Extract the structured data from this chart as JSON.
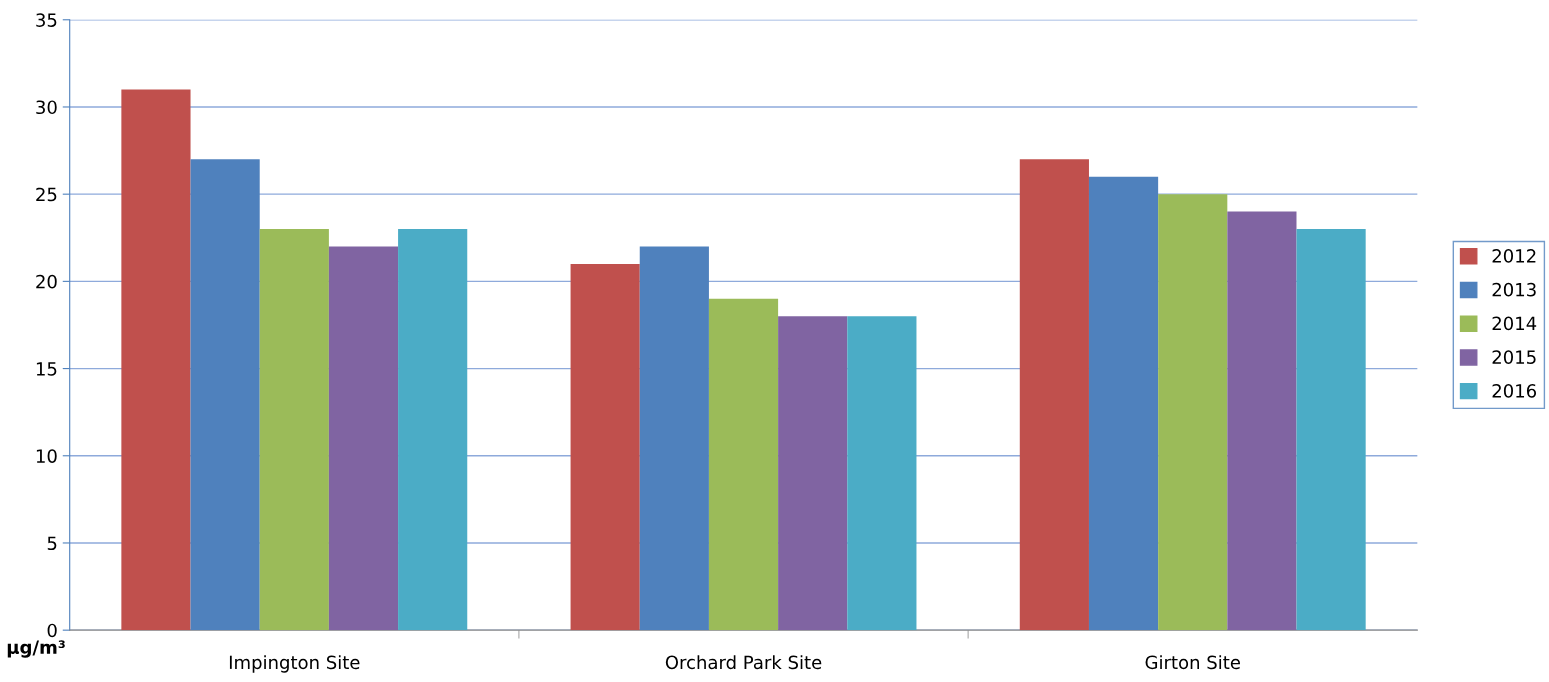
{
  "chart_data": {
    "type": "bar",
    "ylabel": "μg/m³",
    "categories": [
      "Impington Site",
      "Orchard Park Site",
      "Girton Site"
    ],
    "series": [
      {
        "name": "2012",
        "color": "#c0504d",
        "values": [
          31,
          21,
          27
        ]
      },
      {
        "name": "2013",
        "color": "#4f81bd",
        "values": [
          27,
          22,
          26
        ]
      },
      {
        "name": "2014",
        "color": "#9bbb59",
        "values": [
          23,
          19,
          25
        ]
      },
      {
        "name": "2015",
        "color": "#8064a2",
        "values": [
          22,
          18,
          24
        ]
      },
      {
        "name": "2016",
        "color": "#4bacc6",
        "values": [
          23,
          18,
          23
        ]
      }
    ],
    "ylim": [
      0,
      35
    ],
    "yticks": [
      0,
      5,
      10,
      15,
      20,
      25,
      30,
      35
    ],
    "grid": "y",
    "legend": "right"
  }
}
